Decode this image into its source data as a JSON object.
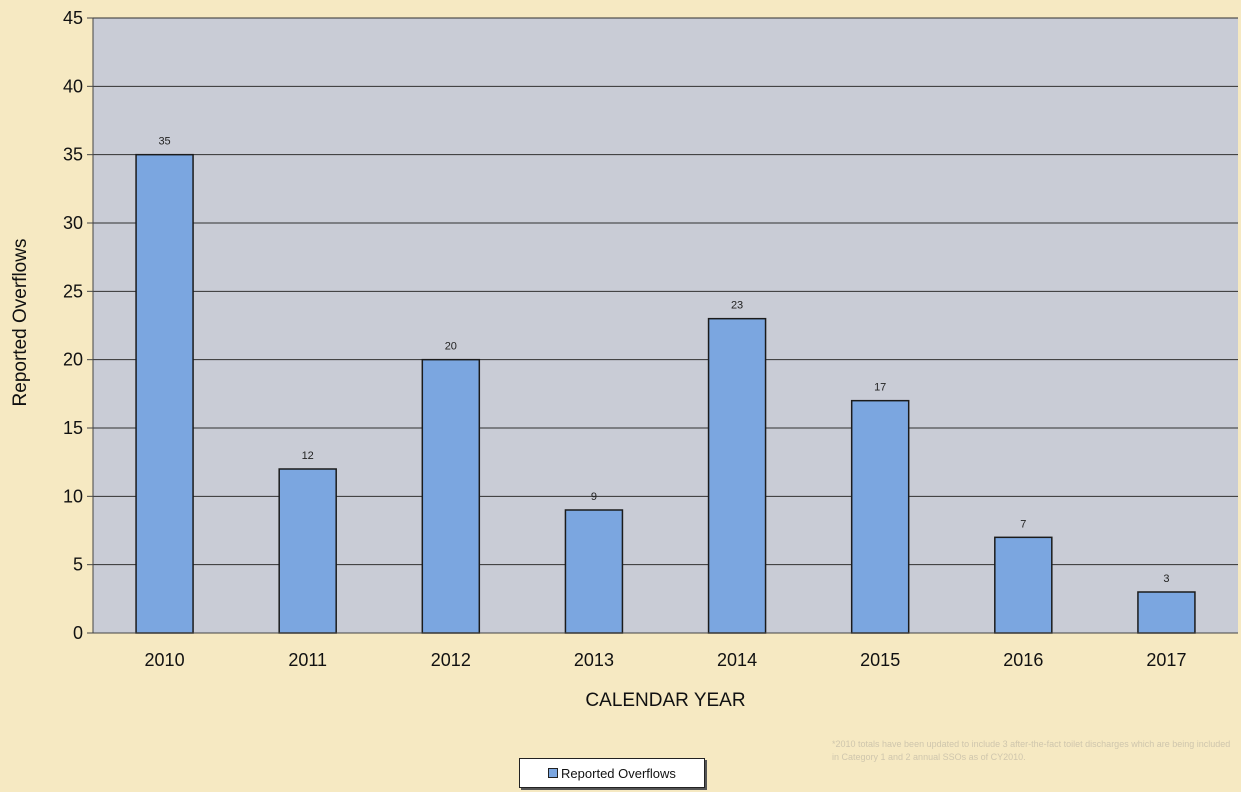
{
  "chart_data": {
    "type": "bar",
    "categories": [
      "2010",
      "2011",
      "2012",
      "2013",
      "2014",
      "2015",
      "2016",
      "2017"
    ],
    "series": [
      {
        "name": "Reported Overflows",
        "values": [
          35,
          12,
          20,
          9,
          23,
          17,
          7,
          3
        ]
      }
    ],
    "xlabel": "CALENDAR YEAR",
    "ylabel": "Reported Overflows",
    "ylim": [
      0,
      45
    ],
    "yticks": [
      0,
      5,
      10,
      15,
      20,
      25,
      30,
      35,
      40,
      45
    ],
    "grid": true,
    "legend": "bottom-center",
    "colors": {
      "bar": "#7ba6e0",
      "plot_background": "#c9ccd6",
      "gridline": "#303030",
      "page_background": "#f6e9c2"
    }
  },
  "legend": {
    "label": "Reported Overflows"
  },
  "footnote": "*2010 totals have been updated to include 3 after-the-fact toilet discharges which are being included in Category 1 and 2 annual SSOs as of CY2010."
}
